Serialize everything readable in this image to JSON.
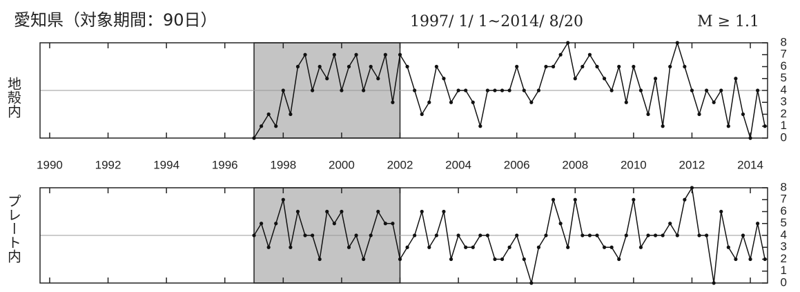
{
  "title": "愛知県（対象期間：90日）",
  "period": "1997/ 1/ 1~2014/ 8/20",
  "magnitude": "M ≥ 1.1",
  "chart_data": [
    {
      "type": "line",
      "ylabel": "地殻内",
      "color": "#111",
      "shade": [
        1997,
        2002
      ],
      "reference_line": 4,
      "x": [
        1997,
        1997.25,
        1997.5,
        1997.75,
        1998,
        1998.25,
        1998.5,
        1998.75,
        1999,
        1999.25,
        1999.5,
        1999.75,
        2000,
        2000.25,
        2000.5,
        2000.75,
        2001,
        2001.25,
        2001.5,
        2001.75,
        2002,
        2002.25,
        2002.5,
        2002.75,
        2003,
        2003.25,
        2003.5,
        2003.75,
        2004,
        2004.25,
        2004.5,
        2004.75,
        2005,
        2005.25,
        2005.5,
        2005.75,
        2006,
        2006.25,
        2006.5,
        2006.75,
        2007,
        2007.25,
        2007.5,
        2007.75,
        2008,
        2008.25,
        2008.5,
        2008.75,
        2009,
        2009.25,
        2009.5,
        2009.75,
        2010,
        2010.25,
        2010.5,
        2010.75,
        2011,
        2011.25,
        2011.5,
        2011.75,
        2012,
        2012.25,
        2012.5,
        2012.75,
        2013,
        2013.25,
        2013.5,
        2013.75,
        2014,
        2014.25,
        2014.5
      ],
      "values": [
        0,
        1,
        2,
        1,
        4,
        2,
        6,
        7,
        4,
        6,
        5,
        7,
        4,
        6,
        7,
        4,
        6,
        5,
        7,
        3,
        7,
        6,
        4,
        2,
        3,
        6,
        5,
        3,
        4,
        4,
        3,
        1,
        4,
        4,
        4,
        4,
        6,
        4,
        3,
        4,
        6,
        6,
        7,
        8,
        5,
        6,
        7,
        6,
        5,
        4,
        6,
        3,
        6,
        4,
        2,
        5,
        1,
        6,
        8,
        6,
        4,
        2,
        4,
        3,
        4,
        1,
        5,
        2,
        0,
        4,
        1
      ],
      "xlim": [
        1989.67,
        2014.59
      ],
      "xticks": [
        1990,
        1992,
        1994,
        1996,
        1998,
        2000,
        2002,
        2004,
        2006,
        2008,
        2010,
        2012,
        2014
      ],
      "ylim": [
        0,
        8
      ],
      "yticks": [
        0,
        1,
        2,
        3,
        4,
        5,
        6,
        7,
        8
      ]
    },
    {
      "type": "line",
      "ylabel": "プレート内",
      "color": "#111",
      "shade": [
        1997,
        2002
      ],
      "reference_line": 4,
      "x": [
        1997,
        1997.25,
        1997.5,
        1997.75,
        1998,
        1998.25,
        1998.5,
        1998.75,
        1999,
        1999.25,
        1999.5,
        1999.75,
        2000,
        2000.25,
        2000.5,
        2000.75,
        2001,
        2001.25,
        2001.5,
        2001.75,
        2002,
        2002.25,
        2002.5,
        2002.75,
        2003,
        2003.25,
        2003.5,
        2003.75,
        2004,
        2004.25,
        2004.5,
        2004.75,
        2005,
        2005.25,
        2005.5,
        2005.75,
        2006,
        2006.25,
        2006.5,
        2006.75,
        2007,
        2007.25,
        2007.5,
        2007.75,
        2008,
        2008.25,
        2008.5,
        2008.75,
        2009,
        2009.25,
        2009.5,
        2009.75,
        2010,
        2010.25,
        2010.5,
        2010.75,
        2011,
        2011.25,
        2011.5,
        2011.75,
        2012,
        2012.25,
        2012.5,
        2012.75,
        2013,
        2013.25,
        2013.5,
        2013.75,
        2014,
        2014.25,
        2014.5
      ],
      "values": [
        4,
        5,
        3,
        5,
        7,
        3,
        6,
        4,
        4,
        2,
        6,
        5,
        6,
        3,
        4,
        2,
        4,
        6,
        5,
        5,
        2,
        3,
        4,
        6,
        3,
        4,
        6,
        2,
        4,
        3,
        3,
        4,
        4,
        2,
        2,
        3,
        4,
        2,
        0,
        3,
        4,
        7,
        5,
        3,
        7,
        4,
        4,
        4,
        3,
        3,
        2,
        4,
        7,
        3,
        4,
        4,
        4,
        5,
        4,
        7,
        8,
        4,
        4,
        0,
        6,
        3,
        2,
        4,
        2,
        5,
        2
      ],
      "xlim": [
        1989.67,
        2014.59
      ],
      "ylim": [
        0,
        8
      ],
      "yticks": [
        0,
        1,
        2,
        3,
        4,
        5,
        6,
        7,
        8
      ]
    }
  ]
}
